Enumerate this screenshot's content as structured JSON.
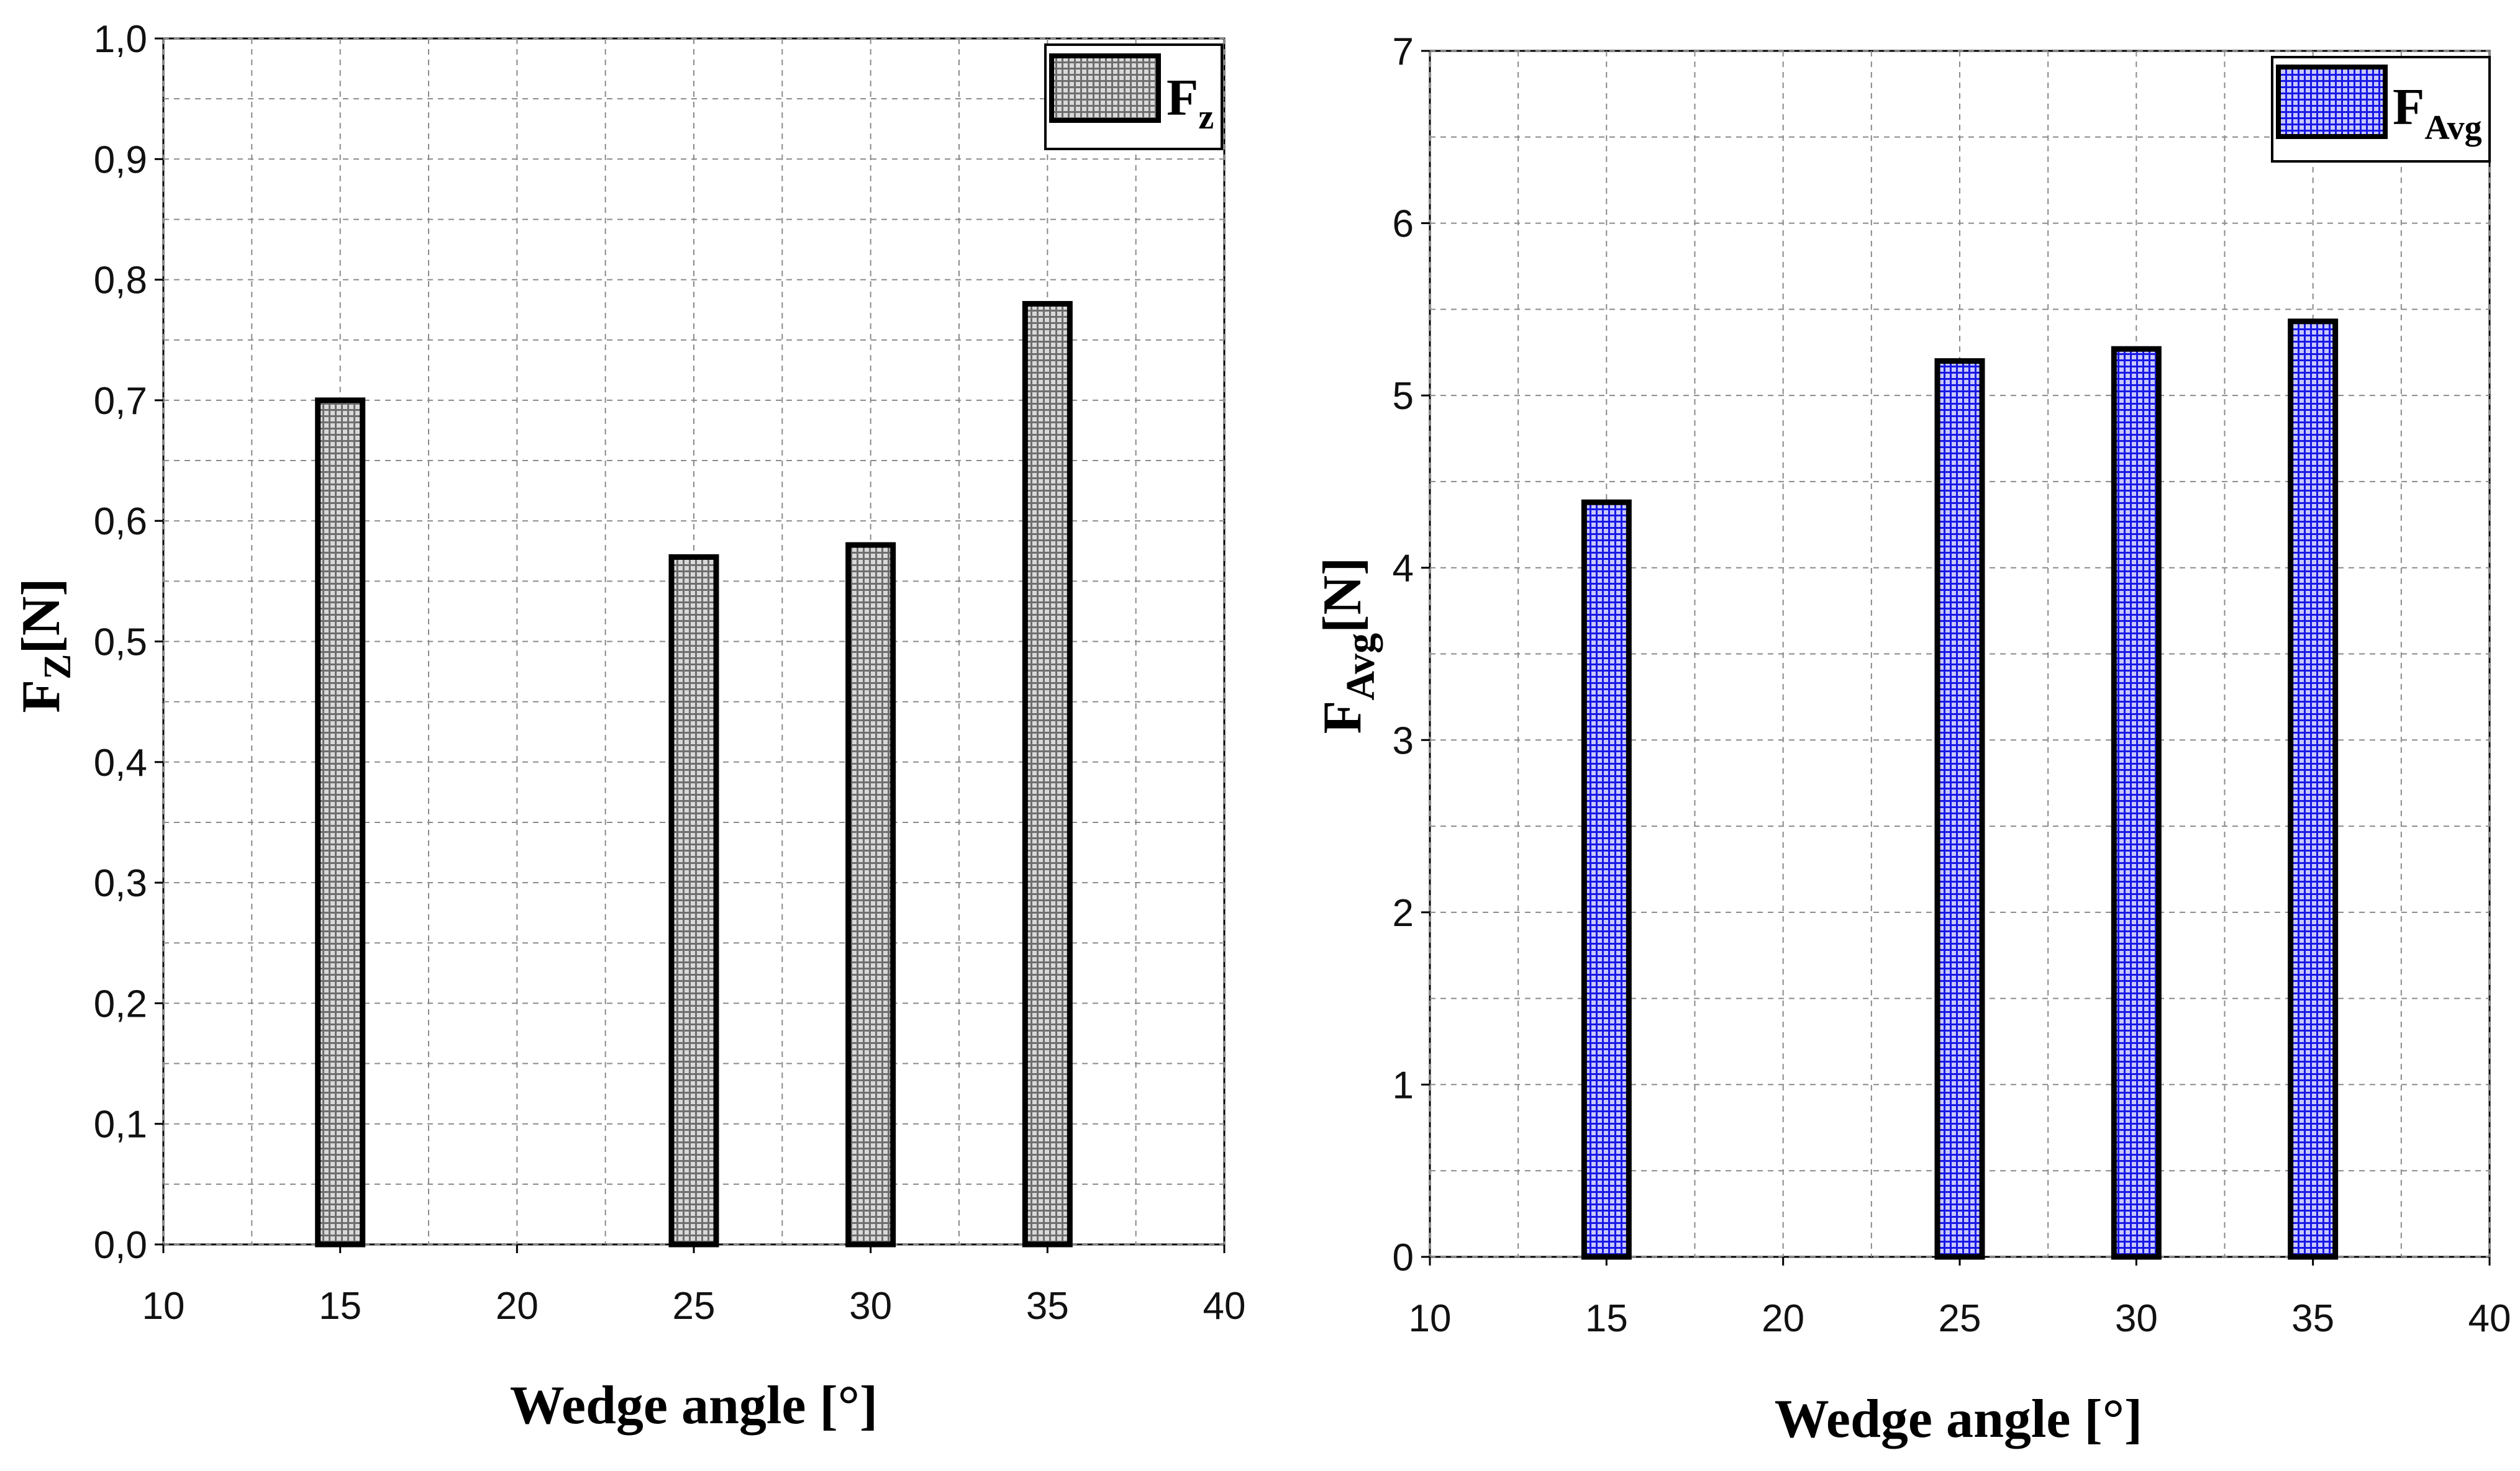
{
  "chart_data": [
    {
      "type": "bar",
      "x": [
        15,
        25,
        30,
        35
      ],
      "series": [
        {
          "name": "Fz",
          "values": [
            0.7,
            0.57,
            0.58,
            0.78
          ],
          "color": "#8c8c8c"
        }
      ],
      "xlim": [
        10,
        40
      ],
      "ylim": [
        0.0,
        1.0
      ],
      "x_ticks": [
        "10",
        "15",
        "20",
        "25",
        "30",
        "35",
        "40"
      ],
      "y_ticks": [
        "0,0",
        "0,1",
        "0,2",
        "0,3",
        "0,4",
        "0,5",
        "0,6",
        "0,7",
        "0,8",
        "0,9",
        "1,0"
      ],
      "xlabel": "Wedge angle [°]",
      "ylabel_main": "F",
      "ylabel_sub": "Z",
      "ylabel_unit": "[N]",
      "legend_main": "F",
      "legend_sub": "z",
      "legend_position": "top-right",
      "grid": true
    },
    {
      "type": "bar",
      "x": [
        15,
        25,
        30,
        35
      ],
      "series": [
        {
          "name": "FAvg",
          "values": [
            4.38,
            5.2,
            5.27,
            5.43
          ],
          "color": "#1a1aff"
        }
      ],
      "xlim": [
        10,
        40
      ],
      "ylim": [
        0,
        7
      ],
      "x_ticks": [
        "10",
        "15",
        "20",
        "25",
        "30",
        "35",
        "40"
      ],
      "y_ticks": [
        "0",
        "1",
        "2",
        "3",
        "4",
        "5",
        "6",
        "7"
      ],
      "xlabel": "Wedge angle [°]",
      "ylabel_main": "F",
      "ylabel_sub": "Avg",
      "ylabel_unit": "[N]",
      "legend_main": "F",
      "legend_sub": "Avg",
      "legend_position": "top-right",
      "grid": true
    }
  ]
}
